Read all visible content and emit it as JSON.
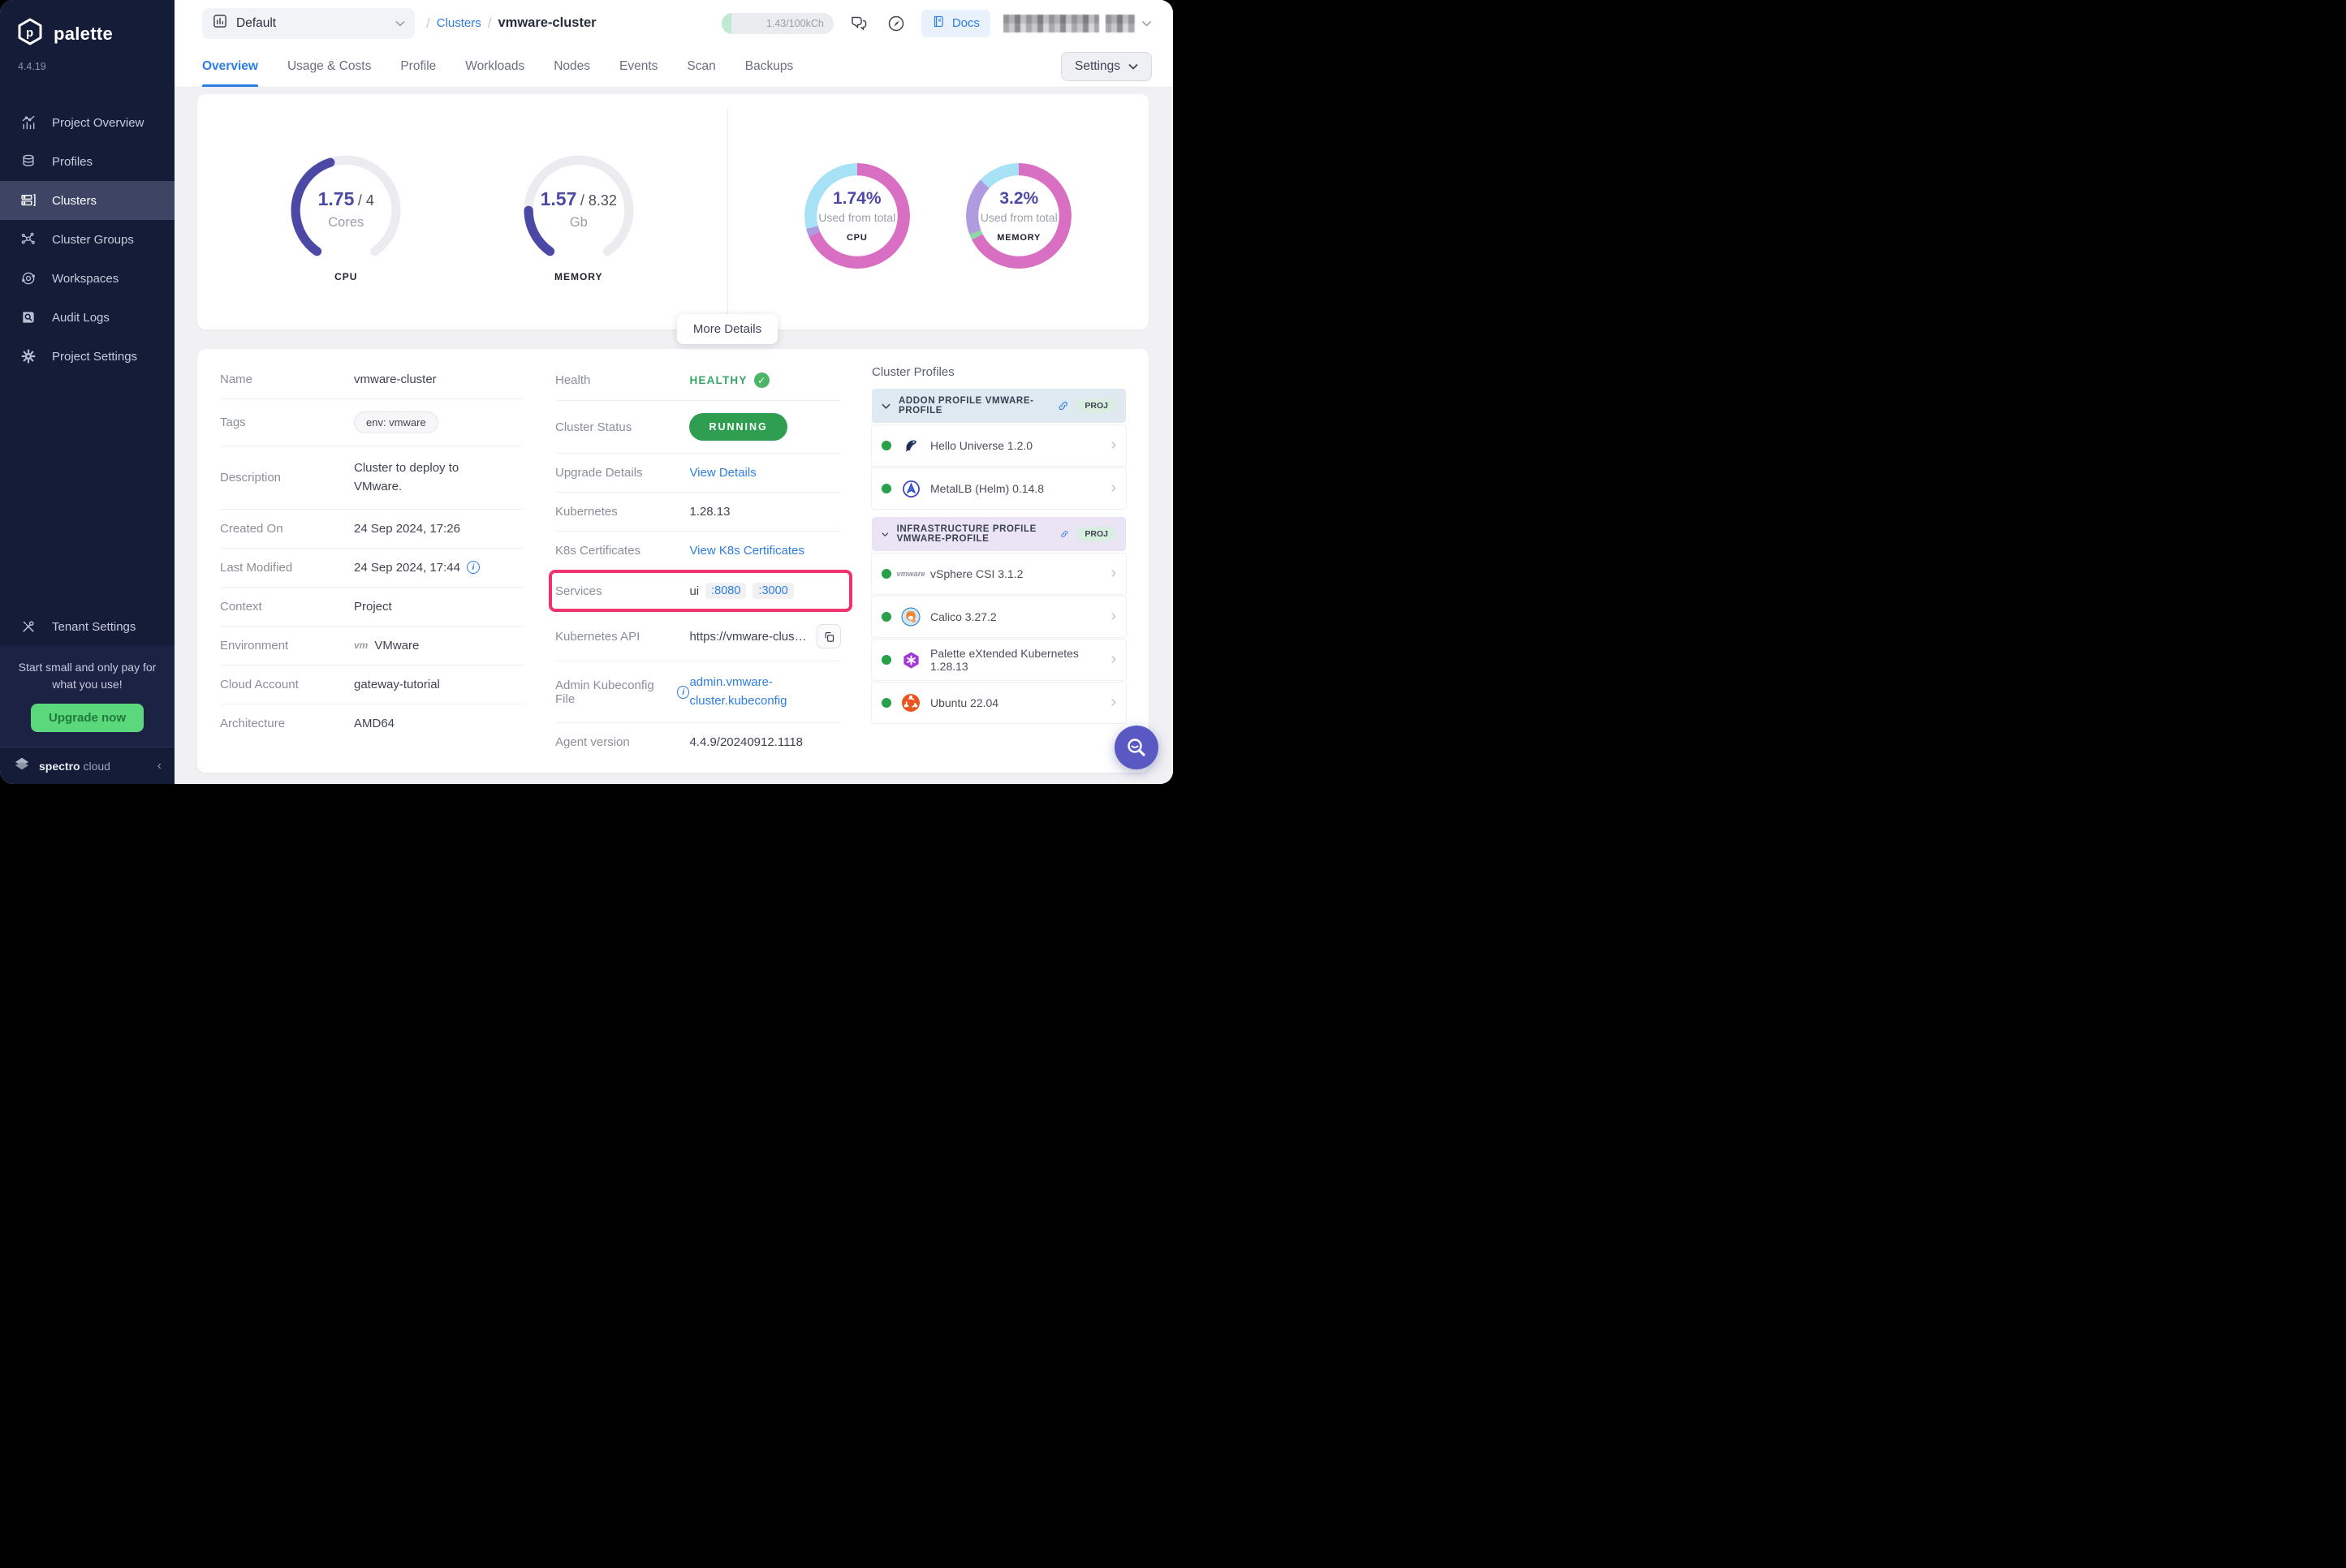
{
  "sidebar": {
    "brand": "palette",
    "version": "4.4.19",
    "items": [
      {
        "label": "Project Overview",
        "icon": "chart-icon"
      },
      {
        "label": "Profiles",
        "icon": "layers-icon"
      },
      {
        "label": "Clusters",
        "icon": "server-icon"
      },
      {
        "label": "Cluster Groups",
        "icon": "network-icon"
      },
      {
        "label": "Workspaces",
        "icon": "orbit-icon"
      },
      {
        "label": "Audit Logs",
        "icon": "doc-search-icon"
      },
      {
        "label": "Project Settings",
        "icon": "gear-icon"
      }
    ],
    "tenant_label": "Tenant Settings",
    "banner_text": "Start small and only pay for what you use!",
    "upgrade_label": "Upgrade now",
    "footer_bold": "spectro",
    "footer_light": "cloud"
  },
  "topbar": {
    "project_label": "Default",
    "breadcrumb": {
      "sep": "/",
      "section": "Clusters",
      "page": "vmware-cluster"
    },
    "usage_label": "1.43/100kCh",
    "docs_label": "Docs"
  },
  "tabs": {
    "items": [
      "Overview",
      "Usage & Costs",
      "Profile",
      "Workloads",
      "Nodes",
      "Events",
      "Scan",
      "Backups"
    ],
    "settings_label": "Settings"
  },
  "card1": {
    "more_details_label": "More Details"
  },
  "chart_data": [
    {
      "type": "gauge",
      "label": "CPU",
      "value": 1.75,
      "total": 4,
      "value_label": "1.75",
      "total_label": "/ 4",
      "unit": "Cores",
      "color": "#4c49a6",
      "track": "#ececf0",
      "start_deg": 215,
      "sweep_deg": 290
    },
    {
      "type": "gauge",
      "label": "MEMORY",
      "value": 1.57,
      "total": 8.32,
      "value_label": "1.57",
      "total_label": "/ 8.32",
      "unit": "Gb",
      "color": "#4c49a6",
      "track": "#ececf0",
      "start_deg": 215,
      "sweep_deg": 290
    },
    {
      "type": "donut",
      "label": "CPU",
      "value_label": "1.74%",
      "sub_label": "Used from total",
      "segments": [
        {
          "color": "#d96fc3",
          "pct": 68.5
        },
        {
          "color": "#b09ae0",
          "pct": 2.5
        },
        {
          "color": "#a7e1f6",
          "pct": 29
        }
      ]
    },
    {
      "type": "donut",
      "label": "MEMORY",
      "value_label": "3.2%",
      "sub_label": "Used from total",
      "segments": [
        {
          "color": "#d96fc3",
          "pct": 67.5
        },
        {
          "color": "#8fd6a8",
          "pct": 1.8
        },
        {
          "color": "#b09ae0",
          "pct": 17.7
        },
        {
          "color": "#a7e1f6",
          "pct": 13
        }
      ]
    }
  ],
  "details": {
    "left": [
      {
        "label": "Name",
        "value": "vmware-cluster"
      },
      {
        "label": "Tags",
        "value": "env: vmware"
      },
      {
        "label": "Description",
        "value": "Cluster to deploy to VMware."
      },
      {
        "label": "Created On",
        "value": "24 Sep 2024, 17:26"
      },
      {
        "label": "Last Modified",
        "value": "24 Sep 2024, 17:44"
      },
      {
        "label": "Context",
        "value": "Project"
      },
      {
        "label": "Environment",
        "value": "VMware",
        "logo": "vm"
      },
      {
        "label": "Cloud Account",
        "value": "gateway-tutorial"
      },
      {
        "label": "Architecture",
        "value": "AMD64"
      }
    ],
    "middle": [
      {
        "label": "Health",
        "value": "HEALTHY"
      },
      {
        "label": "Cluster Status",
        "value": "RUNNING"
      },
      {
        "label": "Upgrade Details",
        "value": "View Details"
      },
      {
        "label": "Kubernetes",
        "value": "1.28.13"
      },
      {
        "label": "K8s Certificates",
        "value": "View K8s Certificates"
      },
      {
        "label": "Services",
        "service_name": "ui",
        "ports": [
          ":8080",
          ":3000"
        ]
      },
      {
        "label": "Kubernetes API",
        "value": "https://vmware-clus…"
      },
      {
        "label": "Admin Kubeconfig File",
        "value": "admin.vmware-cluster.kubeconfig"
      },
      {
        "label": "Agent version",
        "value": "4.4.9/20240912.1118"
      }
    ]
  },
  "profiles": {
    "title": "Cluster Profiles",
    "groups": [
      {
        "header": "ADDON PROFILE VMWARE-PROFILE",
        "badge": "PROJ",
        "items": [
          {
            "name": "Hello Universe 1.2.0",
            "icon": "hello-universe-icon"
          },
          {
            "name": "MetalLB (Helm) 0.14.8",
            "icon": "metallb-icon"
          }
        ]
      },
      {
        "header": "INFRASTRUCTURE PROFILE VMWARE-PROFILE",
        "badge": "PROJ",
        "items": [
          {
            "name": "vSphere CSI 3.1.2",
            "icon": "vmware-icon"
          },
          {
            "name": "Calico 3.27.2",
            "icon": "calico-icon"
          },
          {
            "name": "Palette eXtended Kubernetes 1.28.13",
            "icon": "pxk-icon"
          },
          {
            "name": "Ubuntu 22.04",
            "icon": "ubuntu-icon"
          }
        ]
      }
    ]
  }
}
